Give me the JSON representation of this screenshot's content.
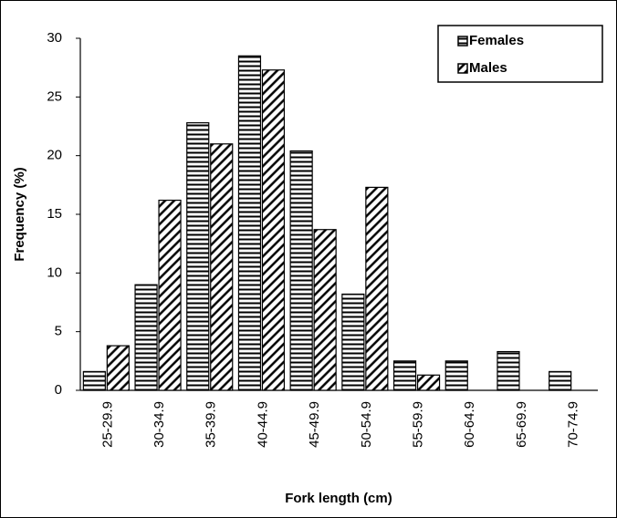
{
  "chart_data": {
    "type": "bar",
    "xlabel": "Fork length (cm)",
    "ylabel": "Frequency  (%)",
    "categories": [
      "25-29.9",
      "30-34.9",
      "35-39.9",
      "40-44.9",
      "45-49.9",
      "50-54.9",
      "55-59.9",
      "60-64.9",
      "65-69.9",
      "70-74.9"
    ],
    "series": [
      {
        "name": "Females",
        "color": "#000000",
        "pattern": "horizontal",
        "values": [
          1.6,
          9.0,
          22.8,
          28.5,
          20.4,
          8.2,
          2.5,
          2.5,
          3.3,
          1.6
        ]
      },
      {
        "name": "Males",
        "color": "#000000",
        "pattern": "diagonal",
        "values": [
          3.8,
          16.2,
          21.0,
          27.3,
          13.7,
          17.3,
          1.3,
          0,
          0,
          0
        ]
      }
    ],
    "ylim": [
      0,
      30
    ],
    "yticks": [
      0,
      5,
      10,
      15,
      20,
      25,
      30
    ],
    "legend": "upper right"
  }
}
